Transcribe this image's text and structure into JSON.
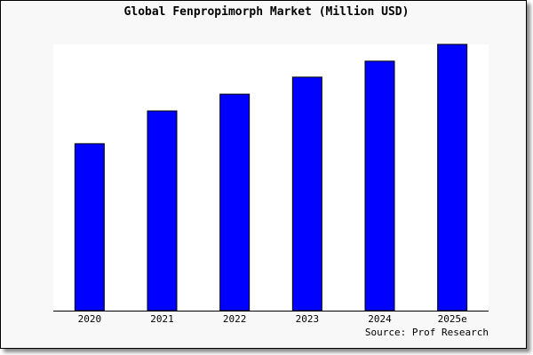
{
  "chart_data": {
    "type": "bar",
    "title": "Global Fenpropimorph Market (Million USD)",
    "categories": [
      "2020",
      "2021",
      "2022",
      "2023",
      "2024",
      "2025e"
    ],
    "values": [
      62.7,
      75.0,
      81.3,
      87.7,
      93.7,
      100
    ],
    "ylim": [
      0,
      100
    ],
    "xlabel": "",
    "ylabel": "",
    "grid": false,
    "annotation": "Source: Prof Research",
    "colors": {
      "bar": "#0000ff",
      "bar_border": "#000000",
      "plot_bg": "#ffffff",
      "page_bg": "#f8f8f8"
    }
  }
}
